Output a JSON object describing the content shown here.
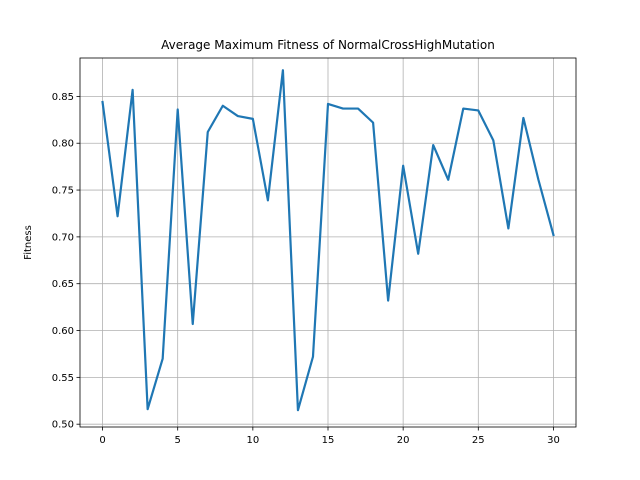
{
  "chart_data": {
    "type": "line",
    "title": "Average Maximum Fitness of NormalCrossHighMutation",
    "xlabel": "",
    "ylabel": "Fitness",
    "xlim": [
      -1.5,
      31.5
    ],
    "ylim": [
      0.497,
      0.891
    ],
    "grid": true,
    "x_ticks": [
      0,
      5,
      10,
      15,
      20,
      25,
      30
    ],
    "x_tick_labels": [
      "0",
      "5",
      "10",
      "15",
      "20",
      "25",
      "30"
    ],
    "y_ticks": [
      0.5,
      0.55,
      0.6,
      0.65,
      0.7,
      0.75,
      0.8,
      0.85
    ],
    "y_tick_labels": [
      "0.50",
      "0.55",
      "0.60",
      "0.65",
      "0.70",
      "0.75",
      "0.80",
      "0.85"
    ],
    "series": [
      {
        "color": "#1f77b4",
        "x": [
          0,
          1,
          2,
          3,
          4,
          5,
          6,
          7,
          8,
          9,
          10,
          11,
          12,
          13,
          14,
          15,
          16,
          17,
          18,
          19,
          20,
          21,
          22,
          23,
          24,
          25,
          26,
          27,
          28,
          29,
          30
        ],
        "y": [
          0.844,
          0.722,
          0.857,
          0.516,
          0.57,
          0.836,
          0.607,
          0.812,
          0.84,
          0.829,
          0.826,
          0.739,
          0.878,
          0.515,
          0.572,
          0.842,
          0.837,
          0.837,
          0.822,
          0.632,
          0.776,
          0.682,
          0.798,
          0.761,
          0.837,
          0.835,
          0.803,
          0.709,
          0.827,
          0.761,
          0.702
        ]
      }
    ]
  }
}
